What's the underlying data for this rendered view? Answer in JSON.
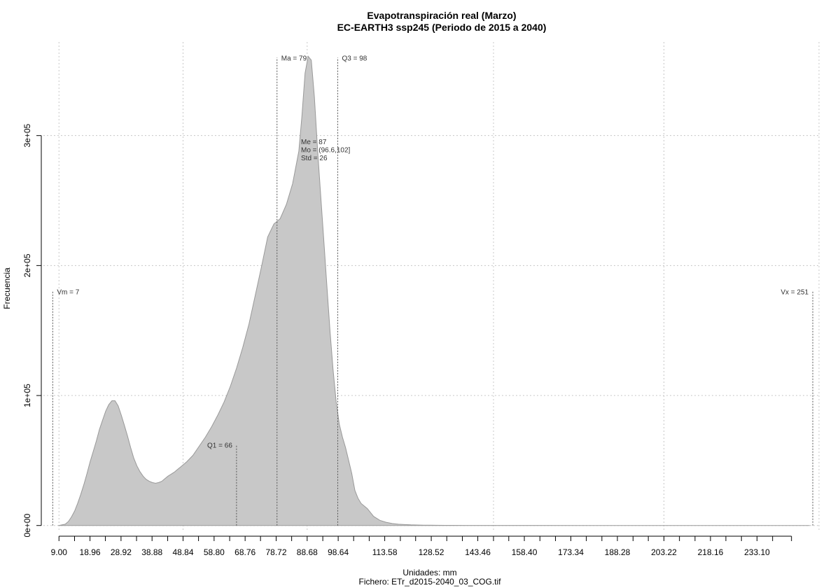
{
  "chart_data": {
    "type": "area",
    "title": "Evapotranspiración real (Marzo)",
    "subtitle": "EC-EARTH3 ssp245 (Periodo de 2015 a 2040)",
    "xlabel": "Unidades: mm",
    "ylabel": "Frecuencia",
    "footer": "Fichero: ETr_d2015-2040_03_COG.tif",
    "xlim": [
      4,
      253
    ],
    "ylim": [
      -5000,
      372000
    ],
    "x_ticks": [
      9.0,
      18.96,
      28.92,
      38.88,
      48.84,
      58.8,
      68.76,
      78.72,
      88.68,
      98.64,
      113.58,
      128.52,
      143.46,
      158.4,
      173.34,
      188.28,
      203.22,
      218.16,
      233.1
    ],
    "x_tick_labels": [
      "9.00",
      "18.96",
      "28.92",
      "38.88",
      "48.84",
      "58.80",
      "68.76",
      "78.72",
      "88.68",
      "98.64",
      "113.58",
      "128.52",
      "143.46",
      "158.40",
      "173.34",
      "188.28",
      "203.22",
      "218.16",
      "233.10"
    ],
    "x_minor_ticks": [
      9.0,
      14.0,
      18.96,
      23.9,
      28.92,
      33.9,
      38.88,
      43.9,
      48.84,
      53.8,
      58.8,
      63.8,
      68.76,
      73.7,
      78.72,
      83.7,
      88.68,
      93.7,
      98.64,
      103.6,
      108.6,
      113.58,
      118.6,
      123.5,
      128.52,
      133.5,
      138.5,
      143.46,
      148.5,
      153.4,
      158.4,
      163.4,
      168.4,
      173.34,
      178.3,
      183.3,
      188.28,
      193.3,
      198.2,
      203.22,
      208.2,
      213.2,
      218.16,
      223.1,
      228.1,
      233.1,
      238.1
    ],
    "x_grid": [
      9.0,
      48.84,
      88.68,
      148.5,
      203.22,
      253.0
    ],
    "y_ticks": [
      0,
      100000,
      200000,
      300000
    ],
    "y_tick_labels": [
      "0e+00",
      "1e+05",
      "2e+05",
      "3e+05"
    ],
    "grid": true,
    "fill_color": "#c8c8c8",
    "line_color": "#999999",
    "series": [
      {
        "x": [
          9,
          10,
          11,
          12,
          13,
          14,
          15,
          16,
          17,
          18,
          19,
          20,
          21,
          22,
          23,
          24,
          25,
          26,
          27,
          28,
          29,
          30,
          31,
          32,
          33,
          34,
          35,
          36,
          37,
          38,
          39,
          40,
          41,
          42,
          43,
          44,
          45,
          46,
          47,
          48,
          50,
          52,
          54,
          56,
          58,
          60,
          62,
          64,
          66,
          68,
          70,
          72,
          74,
          76,
          78,
          80,
          82,
          84,
          86,
          87,
          88,
          89,
          90,
          91,
          92,
          93,
          94,
          95,
          96,
          97,
          98,
          99,
          100,
          101,
          102,
          103,
          104,
          105,
          106,
          107,
          108,
          110,
          112,
          114,
          116,
          118,
          120,
          122,
          124,
          126,
          128,
          130,
          135,
          140,
          150,
          160,
          180,
          200,
          220,
          240,
          250
        ],
        "y": [
          0,
          500,
          1000,
          3000,
          6500,
          11000,
          17000,
          24000,
          31500,
          40000,
          49000,
          57000,
          65000,
          74000,
          81000,
          88000,
          93000,
          96000,
          96000,
          92000,
          85000,
          77000,
          69000,
          60000,
          52000,
          46000,
          41500,
          38000,
          35500,
          34000,
          33000,
          32500,
          33000,
          34000,
          36000,
          38000,
          39500,
          41000,
          43000,
          45000,
          49000,
          54000,
          61000,
          68000,
          76000,
          85000,
          95000,
          107000,
          121000,
          137000,
          155000,
          177000,
          199000,
          222000,
          232000,
          236000,
          247000,
          263000,
          288000,
          315000,
          348000,
          361000,
          358000,
          330000,
          290000,
          255000,
          220000,
          185000,
          150000,
          120000,
          95000,
          78000,
          68000,
          60000,
          50000,
          40000,
          27000,
          21000,
          17000,
          15000,
          13000,
          7000,
          4000,
          2500,
          1500,
          1000,
          700,
          500,
          400,
          300,
          200,
          150,
          100,
          80,
          60,
          50,
          30,
          20,
          10,
          0,
          0
        ]
      }
    ],
    "vlines": [
      {
        "x": 7,
        "label": "Vm = 7",
        "top": 180000,
        "label_side": "right"
      },
      {
        "x": 66,
        "label": "Q1 = 66",
        "top": 62000,
        "label_side": "left"
      },
      {
        "x": 79,
        "label": "Ma = 79",
        "top": 360000,
        "label_side": "right"
      },
      {
        "x": 98.5,
        "label": "Q3 = 98",
        "top": 360000,
        "label_side": "right"
      },
      {
        "x": 251,
        "label": "Vx = 251",
        "top": 180000,
        "label_side": "left"
      }
    ],
    "stats_text": [
      "Me = 87",
      "Mo = (96.6,102]",
      "Std = 26"
    ]
  }
}
